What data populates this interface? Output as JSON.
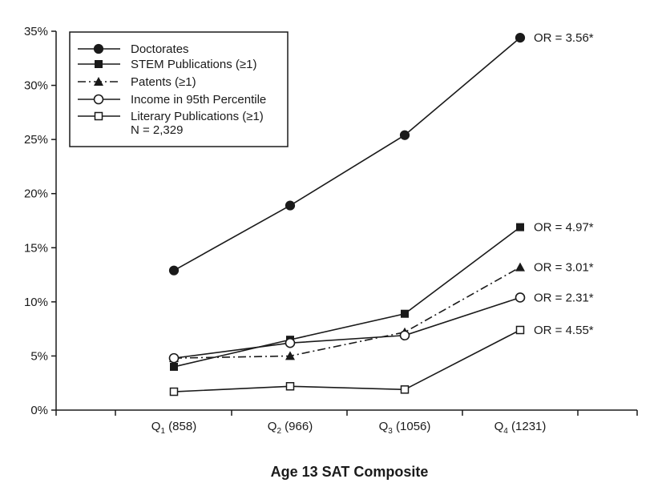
{
  "chart_data": {
    "type": "line",
    "title": "",
    "xlabel": "Age 13 SAT Composite",
    "ylabel": "",
    "ylim": [
      0,
      35
    ],
    "yticks": [
      "0%",
      "5%",
      "10%",
      "15%",
      "20%",
      "25%",
      "30%",
      "35%"
    ],
    "ytick_values": [
      0,
      5,
      10,
      15,
      20,
      25,
      30,
      35
    ],
    "categories": [
      {
        "q": "Q",
        "sub": "1",
        "rest": " (858)"
      },
      {
        "q": "Q",
        "sub": "2",
        "rest": " (966)"
      },
      {
        "q": "Q",
        "sub": "3",
        "rest": " (1056)"
      },
      {
        "q": "Q",
        "sub": "4",
        "rest": " (1231)"
      }
    ],
    "series": [
      {
        "name": "Doctorates",
        "marker": "circle-filled",
        "dash": "solid",
        "values": [
          12.9,
          18.9,
          25.4,
          34.4
        ],
        "odds_ratio": "OR = 3.56*"
      },
      {
        "name": "STEM Publications (≥1)",
        "marker": "square-filled",
        "dash": "solid",
        "values": [
          4.0,
          6.5,
          8.9,
          16.9
        ],
        "odds_ratio": "OR = 4.97*"
      },
      {
        "name": "Patents (≥1)",
        "marker": "triangle-filled",
        "dash": "dashdot",
        "values": [
          4.8,
          5.0,
          7.2,
          13.2
        ],
        "odds_ratio": "OR = 3.01*"
      },
      {
        "name": "Income in 95th Percentile",
        "marker": "circle-open",
        "dash": "solid",
        "values": [
          4.8,
          6.2,
          6.9,
          10.4
        ],
        "odds_ratio": "OR = 2.31*"
      },
      {
        "name": "Literary Publications (≥1)",
        "marker": "square-open",
        "dash": "solid",
        "values": [
          1.7,
          2.2,
          1.9,
          7.4
        ],
        "odds_ratio": "OR = 4.55*"
      }
    ],
    "legend_note": "N = 2,329",
    "legend_position": "top-left",
    "grid": false
  },
  "colors": {
    "ink": "#1a1a1a",
    "background": "#ffffff"
  }
}
